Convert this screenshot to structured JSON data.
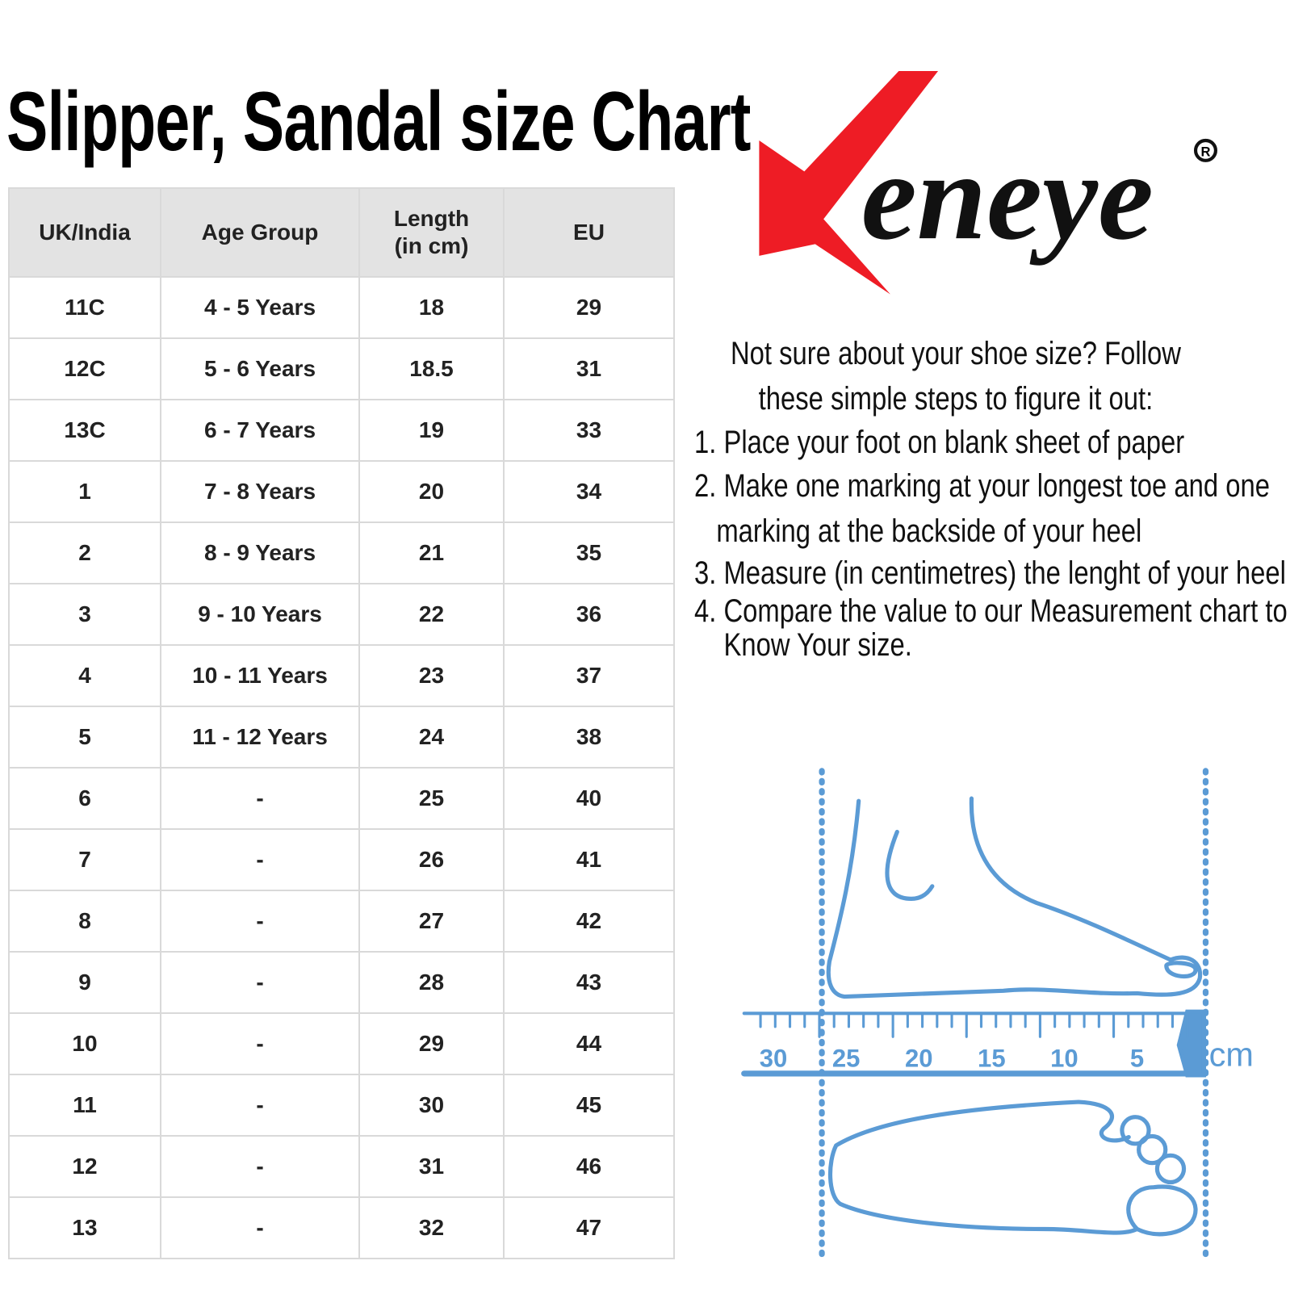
{
  "title": "Slipper, Sandal size Chart",
  "table": {
    "headers": [
      "UK/India",
      "Age Group",
      "Length\n(in cm)",
      "EU"
    ],
    "rows": [
      [
        "11C",
        "4 - 5 Years",
        "18",
        "29"
      ],
      [
        "12C",
        "5 - 6 Years",
        "18.5",
        "31"
      ],
      [
        "13C",
        "6 - 7 Years",
        "19",
        "33"
      ],
      [
        "1",
        "7 - 8 Years",
        "20",
        "34"
      ],
      [
        "2",
        "8 - 9 Years",
        "21",
        "35"
      ],
      [
        "3",
        "9 - 10 Years",
        "22",
        "36"
      ],
      [
        "4",
        "10 - 11 Years",
        "23",
        "37"
      ],
      [
        "5",
        "11 - 12 Years",
        "24",
        "38"
      ],
      [
        "6",
        "-",
        "25",
        "40"
      ],
      [
        "7",
        "-",
        "26",
        "41"
      ],
      [
        "8",
        "-",
        "27",
        "42"
      ],
      [
        "9",
        "-",
        "28",
        "43"
      ],
      [
        "10",
        "-",
        "29",
        "44"
      ],
      [
        "11",
        "-",
        "30",
        "45"
      ],
      [
        "12",
        "-",
        "31",
        "46"
      ],
      [
        "13",
        "-",
        "32",
        "47"
      ]
    ]
  },
  "logo": {
    "text": "eneye",
    "mark": "R"
  },
  "intro": "Not sure about your shoe size? Follow\nthese simple steps to figure it out:",
  "steps": [
    "1. Place your foot on blank sheet of paper",
    "2. Make one marking at your longest toe and one\n   marking at the backside of your heel",
    "3. Measure (in centimetres) the lenght of your heel",
    "4. Compare the value to our Measurement chart to\n    Know Your size."
  ],
  "ruler": {
    "labels": [
      "30",
      "25",
      "20",
      "15",
      "10",
      "5"
    ],
    "unit": "cm"
  }
}
